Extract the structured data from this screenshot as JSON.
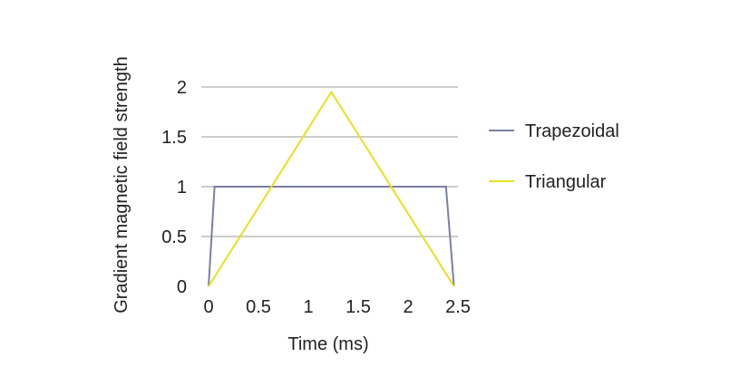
{
  "chart_data": {
    "type": "line",
    "title": "",
    "xlabel": "Time (ms)",
    "ylabel": "Gradient magnetic field strength",
    "xlim": [
      0,
      2.5
    ],
    "ylim": [
      0,
      2
    ],
    "x_ticks": [
      "0",
      "0.5",
      "1",
      "1.5",
      "2",
      "2.5"
    ],
    "y_ticks": [
      "0",
      "0.5",
      "1",
      "1.5",
      "2"
    ],
    "grid": "horizontal",
    "legend_position": "right",
    "series": [
      {
        "name": "Trapezoidal",
        "color": "#7a7fa6",
        "x": [
          0,
          0.06,
          2.38,
          2.46
        ],
        "y": [
          0,
          1,
          1,
          0
        ]
      },
      {
        "name": "Triangular",
        "color": "#e6e21f",
        "x": [
          0,
          1.23,
          2.46
        ],
        "y": [
          0,
          1.95,
          0
        ]
      }
    ]
  }
}
